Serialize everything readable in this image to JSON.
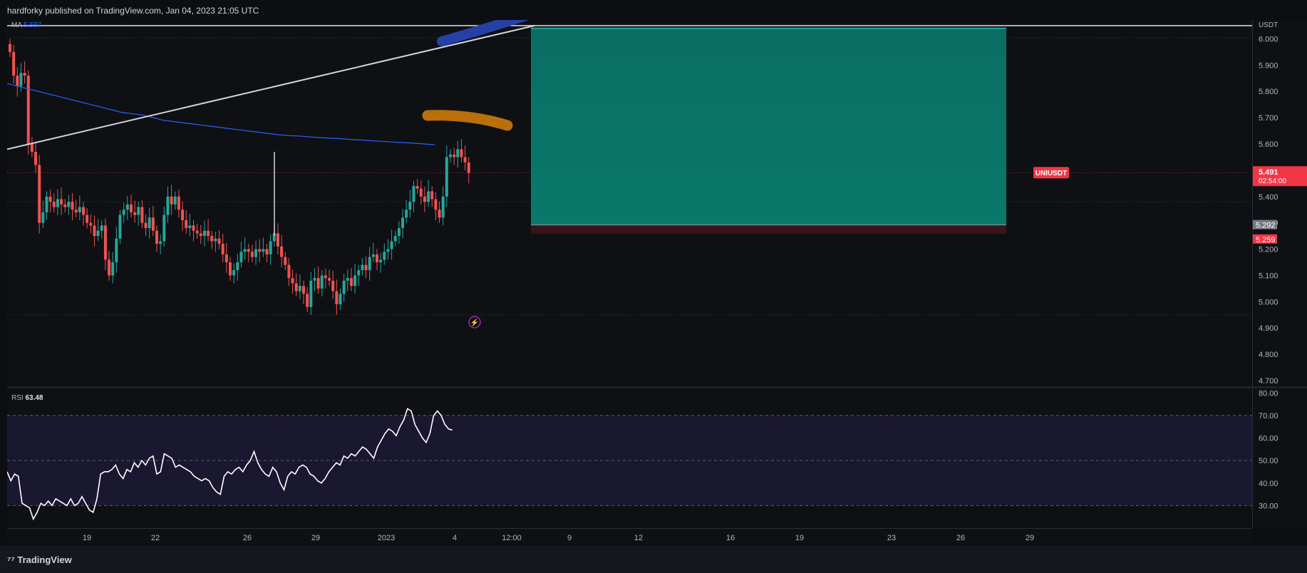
{
  "header": {
    "published_text": "hardforky published on TradingView.com, Jan 04, 2023 21:05 UTC"
  },
  "footer": {
    "brand": "TradingView"
  },
  "chart_data": [
    {
      "type": "candlestick",
      "symbol_label": "UNIUSDT",
      "currency": "USDT",
      "indicator": {
        "name": "MA",
        "value": "5.597",
        "color": "#2962ff"
      },
      "y_ticks": [
        "6.000",
        "5.900",
        "5.800",
        "5.700",
        "5.600",
        "5.400",
        "5.300",
        "5.200",
        "5.100",
        "5.000",
        "4.900",
        "4.800",
        "4.700"
      ],
      "ylim": [
        4.7,
        6.05
      ],
      "x_ticks": [
        "19",
        "22",
        "26",
        "29",
        "2023",
        "4",
        "12:00",
        "9",
        "12",
        "16",
        "19",
        "23",
        "26",
        "29"
      ],
      "last_price": {
        "value": "5.491",
        "countdown": "02:54:00",
        "color": "#f23645"
      },
      "position_tool": {
        "entry": "5.292",
        "stop": "5.259",
        "target": 6.04,
        "profit_color": "#0a6b63",
        "loss_color": "#f23645"
      },
      "closes": [
        5.95,
        5.86,
        5.82,
        5.87,
        5.86,
        5.6,
        5.57,
        5.52,
        5.3,
        5.34,
        5.4,
        5.38,
        5.36,
        5.39,
        5.37,
        5.36,
        5.38,
        5.35,
        5.34,
        5.36,
        5.33,
        5.3,
        5.29,
        5.25,
        5.27,
        5.29,
        5.16,
        5.1,
        5.15,
        5.24,
        5.33,
        5.35,
        5.37,
        5.34,
        5.33,
        5.36,
        5.3,
        5.28,
        5.32,
        5.27,
        5.22,
        5.23,
        5.33,
        5.4,
        5.37,
        5.4,
        5.35,
        5.31,
        5.28,
        5.29,
        5.27,
        5.26,
        5.25,
        5.27,
        5.25,
        5.23,
        5.24,
        5.22,
        5.18,
        5.15,
        5.1,
        5.12,
        5.15,
        5.19,
        5.2,
        5.19,
        5.17,
        5.2,
        5.19,
        5.2,
        5.18,
        5.23,
        5.26,
        5.21,
        5.17,
        5.14,
        5.09,
        5.07,
        5.04,
        5.06,
        5.03,
        4.98,
        5.08,
        5.09,
        5.05,
        5.1,
        5.09,
        5.08,
        5.04,
        4.99,
        5.03,
        5.08,
        5.09,
        5.06,
        5.1,
        5.12,
        5.14,
        5.12,
        5.17,
        5.18,
        5.15,
        5.16,
        5.19,
        5.2,
        5.23,
        5.25,
        5.28,
        5.32,
        5.35,
        5.38,
        5.44,
        5.43,
        5.4,
        5.38,
        5.42,
        5.39,
        5.35,
        5.32,
        5.4,
        5.55,
        5.56,
        5.55,
        5.58,
        5.55,
        5.53,
        5.49
      ],
      "ma_line": [
        5.83,
        5.82,
        5.81,
        5.8,
        5.79,
        5.78,
        5.77,
        5.76,
        5.75,
        5.74,
        5.73,
        5.72,
        5.715,
        5.71,
        5.7,
        5.69,
        5.685,
        5.68,
        5.675,
        5.67,
        5.665,
        5.66,
        5.655,
        5.65,
        5.645,
        5.64,
        5.635,
        5.632,
        5.63,
        5.627,
        5.624,
        5.622,
        5.62,
        5.617,
        5.615,
        5.612,
        5.61,
        5.607,
        5.605,
        5.603,
        5.6,
        5.597
      ],
      "trendline": {
        "from": 5.58,
        "to": 6.05
      },
      "annotations": [
        {
          "kind": "brush",
          "color": "#2541a8"
        },
        {
          "kind": "brush",
          "color": "#b9700a"
        }
      ]
    },
    {
      "type": "line",
      "name": "RSI",
      "value": "63.48",
      "y_ticks": [
        "80.00",
        "70.00",
        "60.00",
        "50.00",
        "40.00",
        "30.00"
      ],
      "ylim": [
        20,
        80
      ],
      "bands": [
        30,
        50,
        70
      ],
      "values": [
        45,
        41,
        44,
        43,
        31,
        30,
        29,
        24,
        27,
        31,
        30,
        32,
        30,
        33,
        32,
        31,
        30,
        33,
        30,
        31,
        34,
        31,
        28,
        27,
        33,
        44,
        45,
        45,
        46,
        48,
        44,
        42,
        46,
        45,
        49,
        47,
        50,
        48,
        51,
        52,
        44,
        45,
        53,
        52,
        51,
        47,
        48,
        47,
        46,
        45,
        43,
        42,
        41,
        42,
        41,
        38,
        36,
        35,
        43,
        45,
        44,
        46,
        47,
        45,
        48,
        50,
        54,
        49,
        46,
        44,
        43,
        47,
        45,
        40,
        37,
        43,
        45,
        44,
        47,
        48,
        47,
        44,
        43,
        41,
        40,
        42,
        45,
        47,
        49,
        48,
        52,
        51,
        53,
        52,
        54,
        56,
        55,
        53,
        51,
        56,
        59,
        62,
        64,
        63,
        61,
        65,
        68,
        73,
        72,
        66,
        63,
        60,
        58,
        62,
        70,
        72,
        70,
        66,
        64,
        63.5
      ]
    }
  ]
}
